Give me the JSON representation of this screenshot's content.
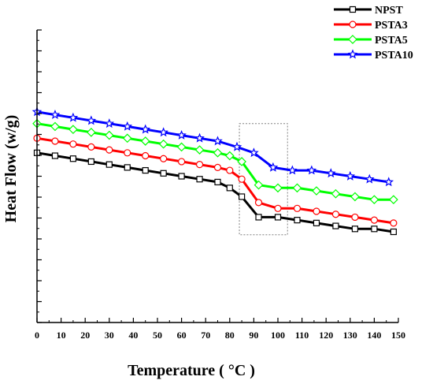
{
  "chart_data": {
    "type": "line",
    "title": "",
    "xlabel": "Temperature ( °C )",
    "ylabel": "Heat Flow (w/g)",
    "xlim": [
      0,
      150
    ],
    "ylim": [
      0,
      10
    ],
    "x_ticks": [
      "0",
      "10",
      "20",
      "30",
      "40",
      "50",
      "60",
      "70",
      "80",
      "90",
      "100",
      "110",
      "120",
      "130",
      "140",
      "150"
    ],
    "y_tick_labels_shown": false,
    "grid": false,
    "legend_position": "top-right",
    "highlight_box": {
      "x_range": [
        84,
        104
      ],
      "y_range": [
        3.0,
        6.8
      ]
    },
    "series": [
      {
        "name": "NPST",
        "color": "#000000",
        "marker": "square",
        "x": [
          0,
          7.5,
          15,
          22.5,
          30,
          37.5,
          45,
          52.5,
          60,
          67.5,
          75,
          80,
          85,
          92,
          100,
          108,
          116,
          124,
          132,
          140,
          148
        ],
        "y": [
          5.8,
          5.7,
          5.6,
          5.5,
          5.4,
          5.3,
          5.2,
          5.1,
          5.0,
          4.9,
          4.8,
          4.6,
          4.3,
          3.6,
          3.6,
          3.5,
          3.4,
          3.3,
          3.2,
          3.2,
          3.1
        ]
      },
      {
        "name": "PSTA3",
        "color": "#ff0000",
        "marker": "circle",
        "x": [
          0,
          7.5,
          15,
          22.5,
          30,
          37.5,
          45,
          52.5,
          60,
          67.5,
          75,
          80,
          85,
          92,
          100,
          108,
          116,
          124,
          132,
          140,
          148
        ],
        "y": [
          6.3,
          6.2,
          6.1,
          6.0,
          5.9,
          5.8,
          5.7,
          5.6,
          5.5,
          5.4,
          5.3,
          5.2,
          4.9,
          4.1,
          3.9,
          3.9,
          3.8,
          3.7,
          3.6,
          3.5,
          3.4
        ]
      },
      {
        "name": "PSTA5",
        "color": "#00ff00",
        "marker": "diamond",
        "x": [
          0,
          7.5,
          15,
          22.5,
          30,
          37.5,
          45,
          52.5,
          60,
          67.5,
          75,
          80,
          85,
          92,
          100,
          108,
          116,
          124,
          132,
          140,
          148
        ],
        "y": [
          6.8,
          6.7,
          6.6,
          6.5,
          6.4,
          6.3,
          6.2,
          6.1,
          6.0,
          5.9,
          5.8,
          5.7,
          5.5,
          4.7,
          4.6,
          4.6,
          4.5,
          4.4,
          4.3,
          4.2,
          4.2
        ]
      },
      {
        "name": "PSTA10",
        "color": "#0000ff",
        "marker": "star",
        "x": [
          0,
          7.5,
          15,
          22.5,
          30,
          37.5,
          45,
          52.5,
          60,
          67.5,
          75,
          83,
          90,
          98,
          106,
          114,
          122,
          130,
          138,
          146
        ],
        "y": [
          7.2,
          7.1,
          7.0,
          6.9,
          6.8,
          6.7,
          6.6,
          6.5,
          6.4,
          6.3,
          6.2,
          6.0,
          5.8,
          5.3,
          5.2,
          5.2,
          5.1,
          5.0,
          4.9,
          4.8
        ]
      }
    ]
  }
}
